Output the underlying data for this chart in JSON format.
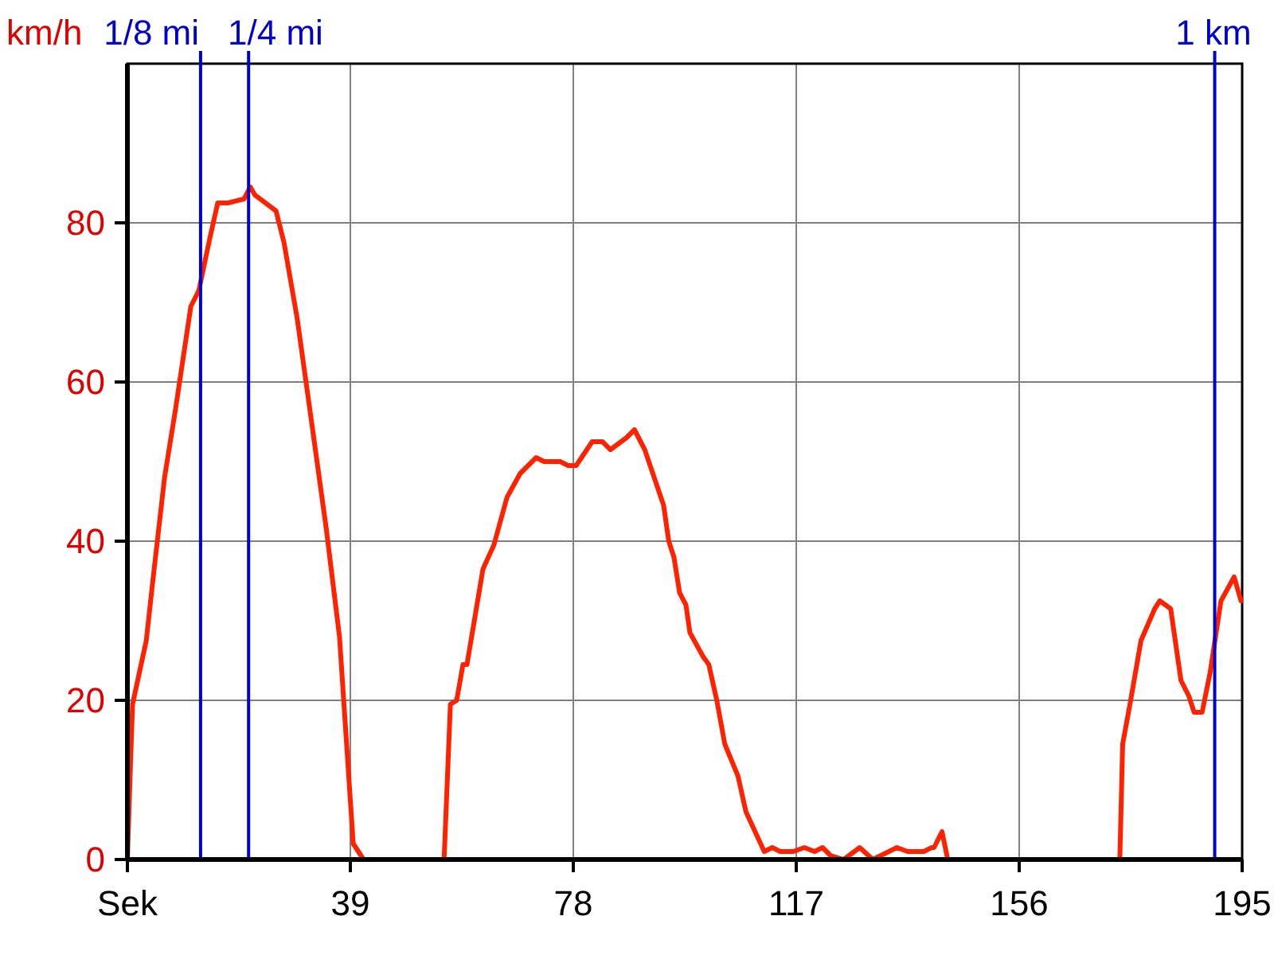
{
  "chart_data": {
    "type": "line",
    "ylabel": "km/h",
    "xlim": [
      0,
      195
    ],
    "ylim": [
      0,
      100
    ],
    "xticks": [
      {
        "value": 0,
        "label": "Sek"
      },
      39,
      78,
      117,
      156,
      195
    ],
    "yticks": [
      0,
      20,
      40,
      60,
      80
    ],
    "grid": true,
    "line_style": "solid",
    "marker": "none",
    "series": [
      {
        "color": "#ff2200",
        "x": [
          0,
          0.5,
          0.9,
          3.3,
          4.6,
          6.5,
          8.4,
          11.1,
          12.5,
          14.4,
          15.8,
          17.6,
          20.4,
          21.5,
          22.3,
          26,
          27.4,
          29.7,
          32.5,
          34.8,
          37.1,
          39.5,
          41.3,
          55.4,
          56.5,
          57.6,
          58.7,
          59.4,
          62.2,
          64.1,
          66.4,
          68.7,
          71.5,
          72.9,
          75.7,
          77.1,
          78.5,
          81.3,
          83.1,
          84.5,
          87.3,
          88.7,
          90.5,
          93.8,
          94.7,
          95.6,
          96.6,
          97.7,
          98.4,
          100.7,
          101.7,
          103.1,
          104.5,
          106.8,
          108.2,
          111.4,
          112.8,
          114.2,
          116.5,
          118.4,
          120.2,
          121.6,
          123,
          125.3,
          128.1,
          130.4,
          134.6,
          136.5,
          139.3,
          140.7,
          141.1,
          142.5,
          143.5,
          173.6,
          174.1,
          175.5,
          177.3,
          179.7,
          180.6,
          182.5,
          184.3,
          185.7,
          186.6,
          188,
          189.4,
          191.3,
          193.6,
          194.8
        ],
        "values": [
          0,
          11,
          19.5,
          27.5,
          36,
          48,
          56.5,
          69.5,
          71.5,
          78,
          82.5,
          82.5,
          83,
          84.5,
          83.5,
          81.5,
          77.5,
          68,
          53.5,
          41.5,
          28,
          2,
          0,
          0,
          19.5,
          20,
          24.5,
          24.5,
          36.5,
          39.5,
          45.5,
          48.5,
          50.5,
          50,
          50,
          49.5,
          49.5,
          52.5,
          52.5,
          51.5,
          53,
          54,
          51.5,
          44.5,
          40,
          38,
          33.5,
          32,
          28.5,
          25.5,
          24.5,
          20,
          14.5,
          10.5,
          6,
          1,
          1.5,
          1,
          1,
          1.5,
          1,
          1.5,
          0.5,
          0,
          1.5,
          0,
          1.5,
          1,
          1,
          1.5,
          1.5,
          3.5,
          0,
          0,
          14.5,
          20,
          27.5,
          31.5,
          32.5,
          31.5,
          22.5,
          20.5,
          18.5,
          18.5,
          23.5,
          32.5,
          35.5,
          32.5
        ]
      }
    ],
    "ref_lines": [
      {
        "axis": "x",
        "value": 12.8,
        "label": "1/8 mi",
        "color": "#0000cc"
      },
      {
        "axis": "x",
        "value": 21.2,
        "label": "1/4 mi",
        "color": "#0000cc"
      },
      {
        "axis": "x",
        "value": 190.2,
        "label": "1 km",
        "color": "#0000cc"
      }
    ]
  }
}
